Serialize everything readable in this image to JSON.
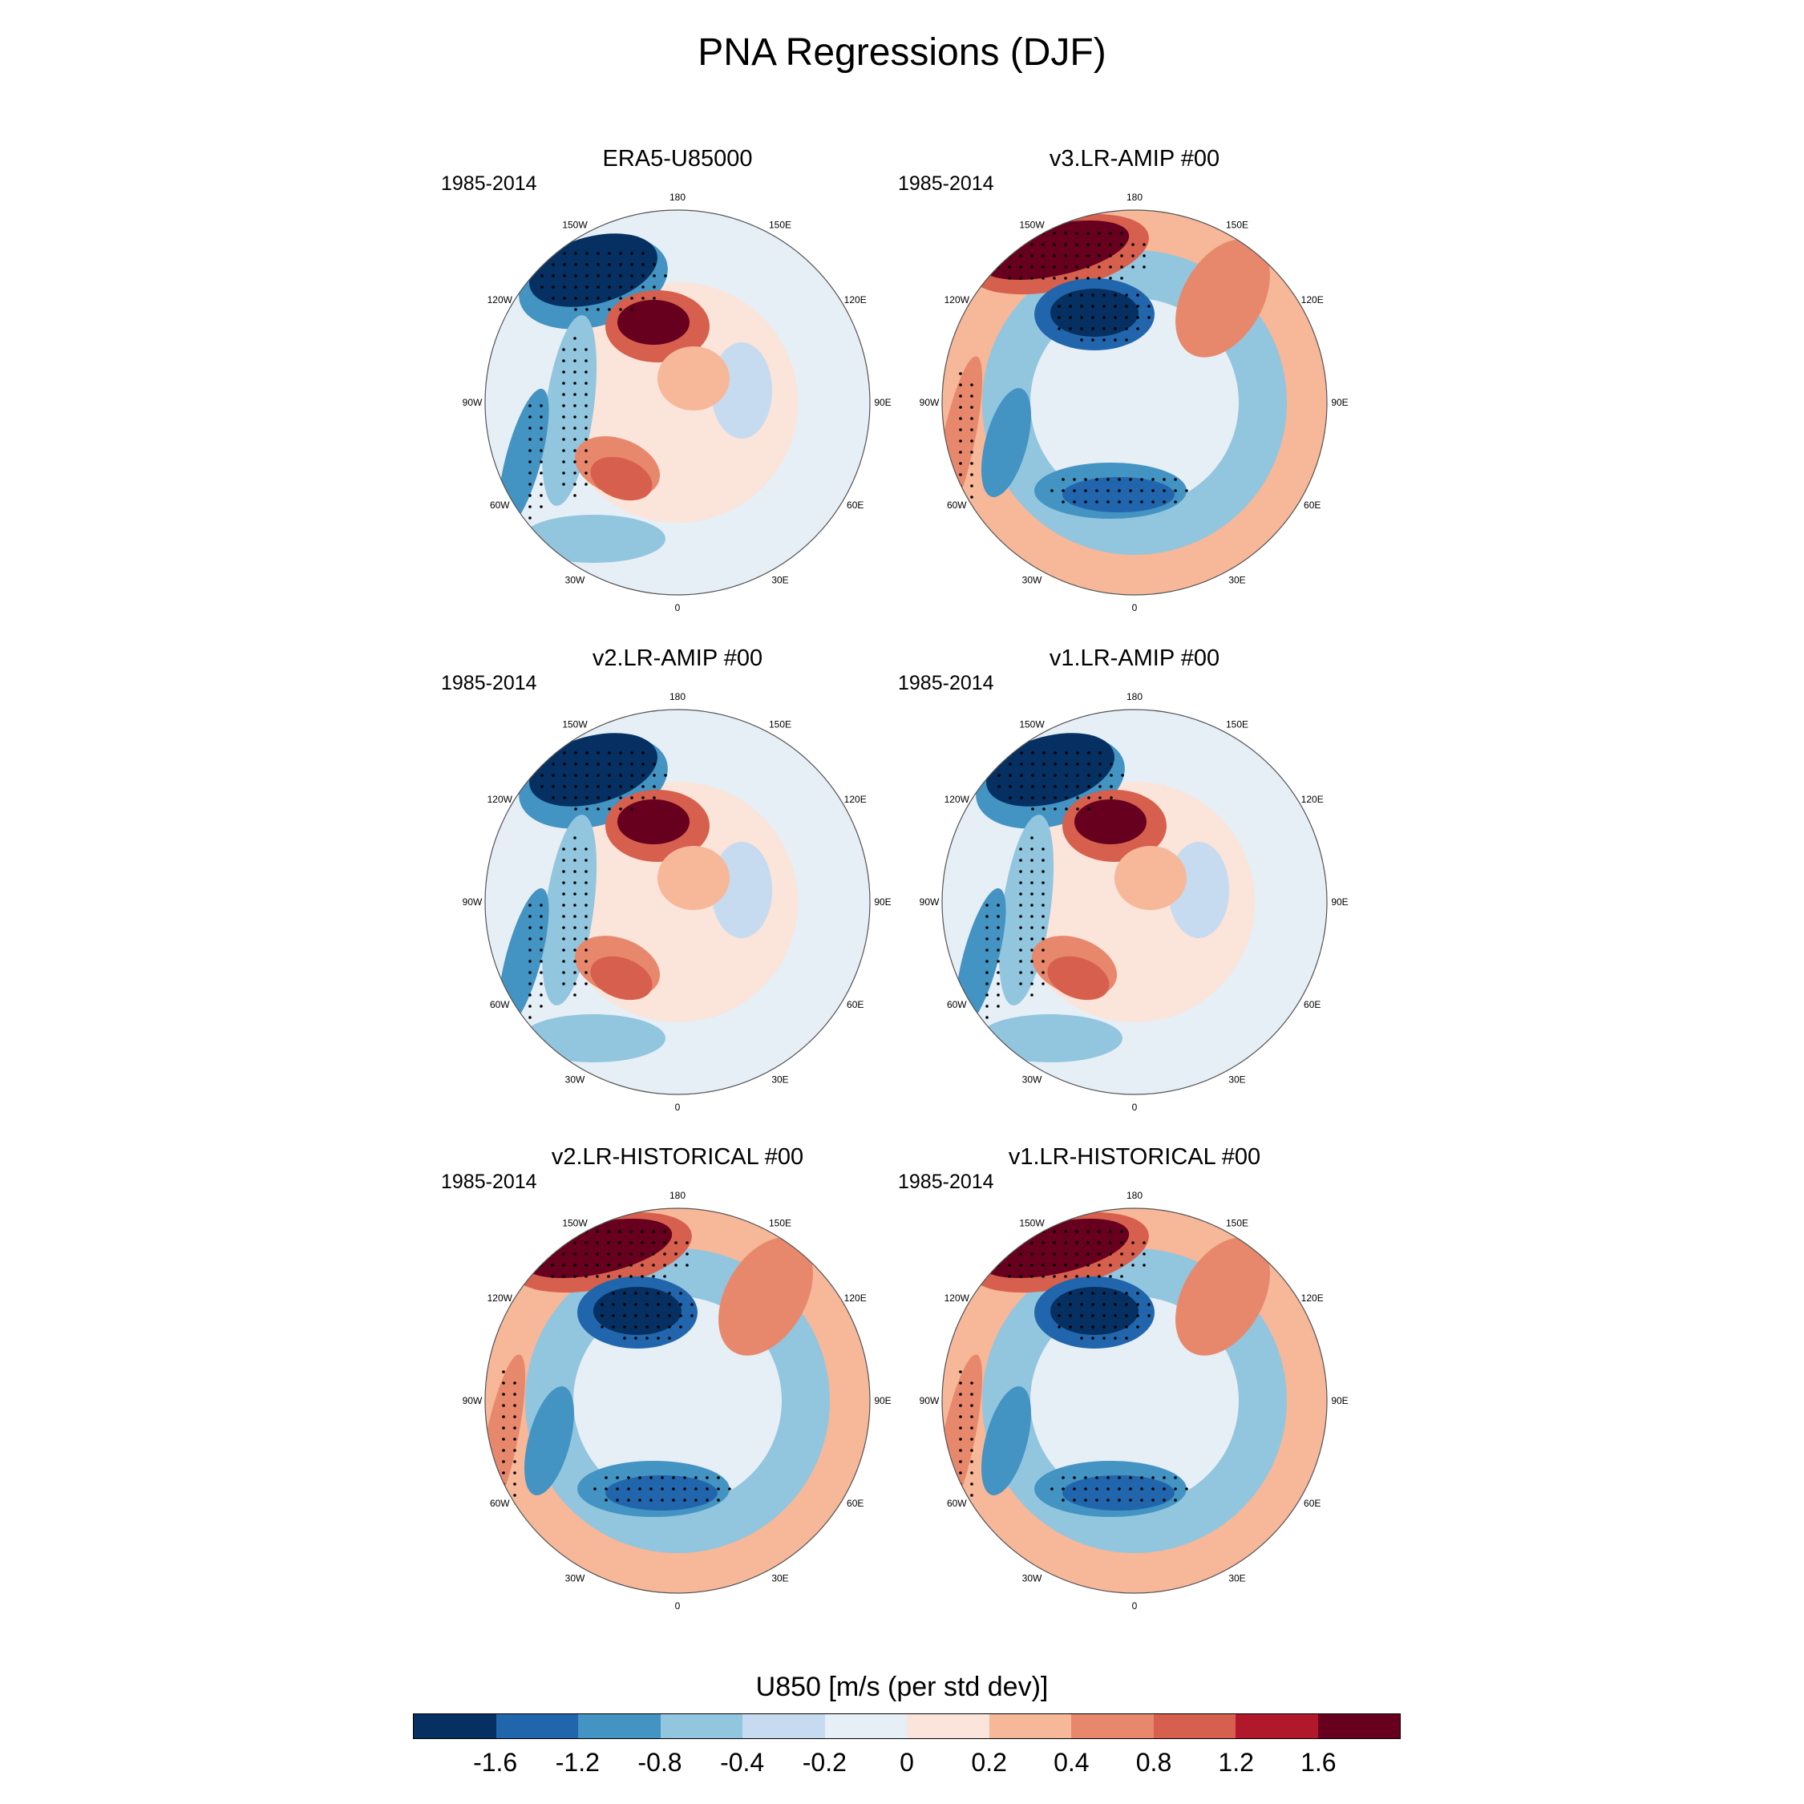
{
  "title": "PNA Regressions (DJF)",
  "chart_data": {
    "type": "heatmap",
    "projection": "north-polar-stereographic",
    "variable": "U850",
    "units": "m/s (per std dev)",
    "colorbar_title": "U850 [m/s (per std dev)]",
    "colorbar_levels": [
      "-1.6",
      "-1.2",
      "-0.8",
      "-0.4",
      "-0.2",
      "0",
      "0.2",
      "0.4",
      "0.8",
      "1.2",
      "1.6"
    ],
    "colorbar_colors": [
      "#053061",
      "#2166ac",
      "#4393c3",
      "#92c5de",
      "#c6dbef",
      "#e6eef6",
      "#fbe4d9",
      "#f7b799",
      "#e7886c",
      "#d6604d",
      "#b2182b",
      "#67001f"
    ],
    "lon_labels": [
      "180",
      "150E",
      "120E",
      "90E",
      "60E",
      "30E",
      "0",
      "30W",
      "60W",
      "90W",
      "120W",
      "150W"
    ],
    "panels": [
      {
        "title": "ERA5-U85000",
        "period": "1985-2014",
        "pattern": "obs"
      },
      {
        "title": "v3.LR-AMIP  #00",
        "period": "1985-2014",
        "pattern": "inverted"
      },
      {
        "title": "v2.LR-AMIP  #00",
        "period": "1985-2014",
        "pattern": "obs"
      },
      {
        "title": "v1.LR-AMIP  #00",
        "period": "1985-2014",
        "pattern": "obs"
      },
      {
        "title": "v2.LR-HISTORICAL  #00",
        "period": "1985-2014",
        "pattern": "inverted"
      },
      {
        "title": "v1.LR-HISTORICAL  #00",
        "period": "1985-2014",
        "pattern": "inverted"
      }
    ]
  }
}
